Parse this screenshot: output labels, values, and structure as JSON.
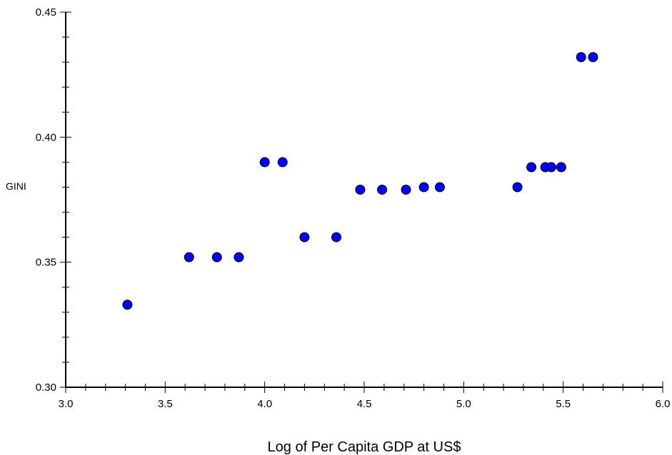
{
  "chart_data": {
    "type": "scatter",
    "title": "",
    "xlabel": "Log of Per Capita GDP at US$",
    "ylabel": "GINI",
    "xlim": [
      3.0,
      6.0
    ],
    "ylim": [
      0.3,
      0.45
    ],
    "x_ticks": [
      "3.0",
      "3.5",
      "4.0",
      "4.5",
      "5.0",
      "5.5",
      "6.0"
    ],
    "y_ticks": [
      "0.30",
      "0.35",
      "0.40",
      "0.45"
    ],
    "grid": false,
    "legend": "none",
    "marker_color": "#0000ff",
    "marker_edge_color": "#000000",
    "points": [
      {
        "x": 3.31,
        "y": 0.333
      },
      {
        "x": 3.62,
        "y": 0.352
      },
      {
        "x": 3.76,
        "y": 0.352
      },
      {
        "x": 3.87,
        "y": 0.352
      },
      {
        "x": 4.0,
        "y": 0.39
      },
      {
        "x": 4.09,
        "y": 0.39
      },
      {
        "x": 4.2,
        "y": 0.36
      },
      {
        "x": 4.36,
        "y": 0.36
      },
      {
        "x": 4.48,
        "y": 0.379
      },
      {
        "x": 4.59,
        "y": 0.379
      },
      {
        "x": 4.71,
        "y": 0.379
      },
      {
        "x": 4.8,
        "y": 0.38
      },
      {
        "x": 4.88,
        "y": 0.38
      },
      {
        "x": 5.27,
        "y": 0.38
      },
      {
        "x": 5.34,
        "y": 0.388
      },
      {
        "x": 5.41,
        "y": 0.388
      },
      {
        "x": 5.44,
        "y": 0.388
      },
      {
        "x": 5.49,
        "y": 0.388
      },
      {
        "x": 5.59,
        "y": 0.432
      },
      {
        "x": 5.65,
        "y": 0.432
      }
    ]
  }
}
